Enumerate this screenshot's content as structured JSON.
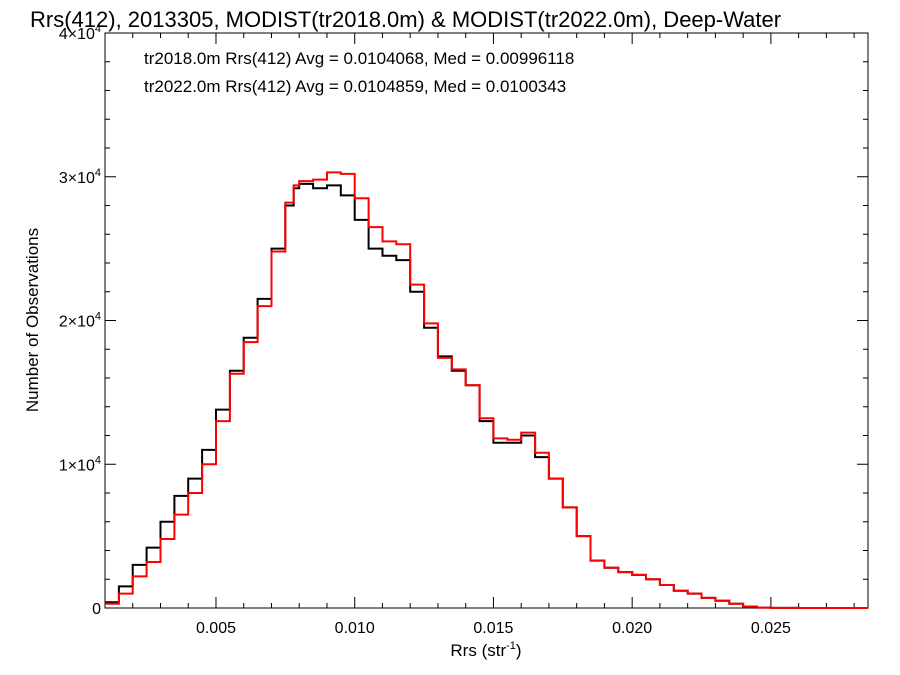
{
  "chart_data": {
    "type": "line",
    "title": "Rrs(412), 2013305, MODIST(tr2018.0m) & MODIST(tr2022.0m), Deep-Water",
    "xlabel": "Rrs (str",
    "xlabel_sup": "-1",
    "xlabel_close": ")",
    "ylabel": "Number of Observations",
    "xlim": [
      0.001,
      0.0285
    ],
    "ylim": [
      0,
      40000
    ],
    "x_ticks": [
      {
        "value": 0.005,
        "label": "0.005"
      },
      {
        "value": 0.01,
        "label": "0.010"
      },
      {
        "value": 0.015,
        "label": "0.015"
      },
      {
        "value": 0.02,
        "label": "0.020"
      },
      {
        "value": 0.025,
        "label": "0.025"
      }
    ],
    "y_ticks": [
      {
        "value": 0,
        "base": "0",
        "exp": ""
      },
      {
        "value": 10000,
        "base": "1×10",
        "exp": "4"
      },
      {
        "value": 20000,
        "base": "2×10",
        "exp": "4"
      },
      {
        "value": 30000,
        "base": "3×10",
        "exp": "4"
      },
      {
        "value": 40000,
        "base": "4×10",
        "exp": "4"
      }
    ],
    "legend_placement": "top-left",
    "series": [
      {
        "name": "tr2018.0m Rrs(412) Avg = 0.0104068, Med = 0.00996118",
        "color": "#000000",
        "x": [
          0.001,
          0.0015,
          0.002,
          0.0025,
          0.003,
          0.0035,
          0.004,
          0.0045,
          0.005,
          0.0055,
          0.006,
          0.0065,
          0.007,
          0.0075,
          0.0078,
          0.008,
          0.0085,
          0.009,
          0.0095,
          0.01,
          0.0105,
          0.011,
          0.0115,
          0.012,
          0.0125,
          0.013,
          0.0135,
          0.014,
          0.0145,
          0.015,
          0.0155,
          0.016,
          0.0165,
          0.017,
          0.0175,
          0.018,
          0.0185,
          0.019,
          0.0195,
          0.02,
          0.0205,
          0.021,
          0.0215,
          0.022,
          0.0225,
          0.023,
          0.0235,
          0.024,
          0.0245,
          0.025,
          0.026,
          0.027,
          0.0285
        ],
        "y": [
          400,
          1500,
          3000,
          4200,
          6000,
          7800,
          9000,
          11000,
          13800,
          16500,
          18800,
          21500,
          25000,
          28000,
          29200,
          29500,
          29200,
          29400,
          28700,
          27000,
          25000,
          24500,
          24200,
          22000,
          19500,
          17500,
          16500,
          15500,
          13000,
          11500,
          11500,
          12000,
          10500,
          9000,
          7000,
          5000,
          3300,
          2800,
          2500,
          2300,
          2000,
          1600,
          1200,
          1000,
          700,
          500,
          300,
          100,
          30,
          10,
          0,
          0,
          0
        ]
      },
      {
        "name": "tr2022.0m Rrs(412) Avg = 0.0104859, Med = 0.0100343",
        "color": "#ff0000",
        "x": [
          0.001,
          0.0015,
          0.002,
          0.0025,
          0.003,
          0.0035,
          0.004,
          0.0045,
          0.005,
          0.0055,
          0.006,
          0.0065,
          0.007,
          0.0075,
          0.0078,
          0.008,
          0.0085,
          0.009,
          0.0095,
          0.01,
          0.0105,
          0.011,
          0.0115,
          0.012,
          0.0125,
          0.013,
          0.0135,
          0.014,
          0.0145,
          0.015,
          0.0155,
          0.016,
          0.0165,
          0.017,
          0.0175,
          0.018,
          0.0185,
          0.019,
          0.0195,
          0.02,
          0.0205,
          0.021,
          0.0215,
          0.022,
          0.0225,
          0.023,
          0.0235,
          0.024,
          0.0245,
          0.025,
          0.026,
          0.027,
          0.0285
        ],
        "y": [
          300,
          1000,
          2200,
          3200,
          4800,
          6500,
          8000,
          10000,
          13000,
          16300,
          18500,
          21000,
          24800,
          28200,
          29400,
          29700,
          29800,
          30300,
          30200,
          28500,
          26500,
          25500,
          25300,
          22500,
          19800,
          17400,
          16600,
          15500,
          13200,
          11800,
          11700,
          12200,
          10800,
          9000,
          7000,
          5000,
          3300,
          2800,
          2500,
          2300,
          2000,
          1600,
          1200,
          1000,
          700,
          500,
          300,
          100,
          30,
          10,
          0,
          0,
          0
        ]
      }
    ]
  }
}
